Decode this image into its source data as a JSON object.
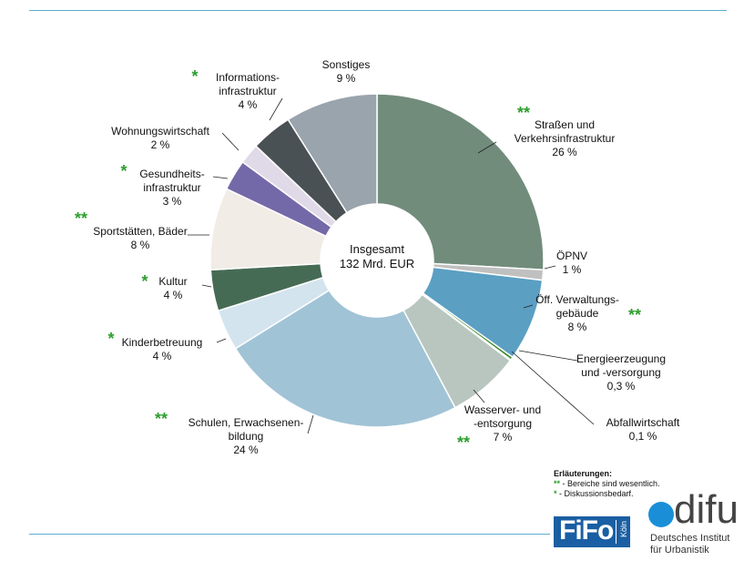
{
  "chart_data": {
    "type": "donut",
    "center_label": [
      "Insgesamt",
      "132 Mrd. EUR"
    ],
    "slices": [
      {
        "name": [
          "Straßen und",
          "Verkehrsinfrastruktur"
        ],
        "pct_label": "26 %",
        "value": 26,
        "color": "#728c7c",
        "stars": "**"
      },
      {
        "name": [
          "ÖPNV"
        ],
        "pct_label": "1 %",
        "value": 1,
        "color": "#c0c0c0",
        "stars": ""
      },
      {
        "name": [
          "Öff. Verwaltungs-",
          "gebäude"
        ],
        "pct_label": "8 %",
        "value": 8,
        "color": "#5b9fc3",
        "stars": "**"
      },
      {
        "name": [
          "Energieerzeugung",
          "und -versorgung"
        ],
        "pct_label": "0,3 %",
        "value": 0.3,
        "color": "#3f8b2f",
        "stars": ""
      },
      {
        "name": [
          "Abfallwirtschaft"
        ],
        "pct_label": "0,1 %",
        "value": 0.1,
        "color": "#9fc56a",
        "stars": ""
      },
      {
        "name": [
          "Wasserver- und",
          "-entsorgung"
        ],
        "pct_label": "7 %",
        "value": 7,
        "color": "#b9c6c0",
        "stars": "**"
      },
      {
        "name": [
          "Schulen, Erwachsenen-",
          "bildung"
        ],
        "pct_label": "24 %",
        "value": 24,
        "color": "#a1c3d6",
        "stars": "**"
      },
      {
        "name": [
          "Kinderbetreuung"
        ],
        "pct_label": "4 %",
        "value": 4,
        "color": "#d3e4ee",
        "stars": "*"
      },
      {
        "name": [
          "Kultur"
        ],
        "pct_label": "4 %",
        "value": 4,
        "color": "#466b55",
        "stars": "*"
      },
      {
        "name": [
          "Sportstätten, Bäder"
        ],
        "pct_label": "8 %",
        "value": 8,
        "color": "#f1ece6",
        "stars": "**"
      },
      {
        "name": [
          "Gesundheits-",
          "infrastruktur"
        ],
        "pct_label": "3 %",
        "value": 3,
        "color": "#7469a8",
        "stars": "*"
      },
      {
        "name": [
          "Wohnungswirtschaft"
        ],
        "pct_label": "2 %",
        "value": 2,
        "color": "#e0dae8",
        "stars": ""
      },
      {
        "name": [
          "Informations-",
          "infrastruktur"
        ],
        "pct_label": "4 %",
        "value": 4,
        "color": "#4a5154",
        "stars": "*"
      },
      {
        "name": [
          "Sonstiges"
        ],
        "pct_label": "9 %",
        "value": 9,
        "color": "#9aa4ad",
        "stars": ""
      }
    ]
  },
  "legend": {
    "title": "Erläuterungen:",
    "line1_star": "**",
    "line1_text": " - Bereiche sind wesentlich.",
    "line2_star": "*",
    "line2_text": " - Diskussionsbedarf."
  },
  "logos": {
    "fifo": "FiFo",
    "fifo_small": "Köln",
    "difu": "difu",
    "difu_sub": [
      "Deutsches Institut",
      "für Urbanistik"
    ]
  },
  "colors": {
    "rule": "#5aaecf",
    "star": "#2e9e2e",
    "fifo": "#1a5fa3",
    "difu_dot": "#1a8fd8"
  }
}
